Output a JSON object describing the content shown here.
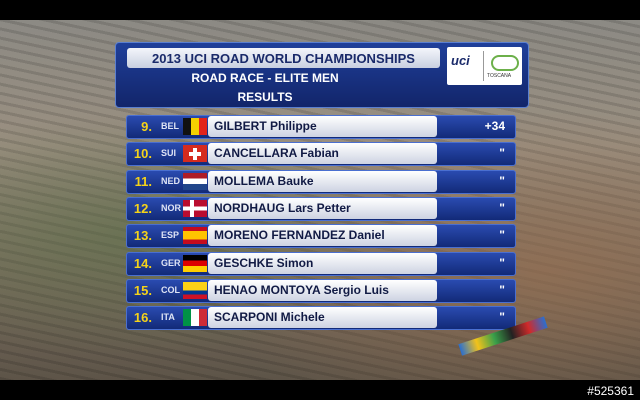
{
  "header": {
    "title": "2013 UCI ROAD WORLD CHAMPIONSHIPS",
    "race": "ROAD RACE - ELITE MEN",
    "section": "RESULTS",
    "logo": "uci",
    "logo_sub": "TOSCANA"
  },
  "results": [
    {
      "rank": "9.",
      "country": "BEL",
      "name": "GILBERT Philippe",
      "gap": "+34"
    },
    {
      "rank": "10.",
      "country": "SUI",
      "name": "CANCELLARA Fabian",
      "gap": "\""
    },
    {
      "rank": "11.",
      "country": "NED",
      "name": "MOLLEMA Bauke",
      "gap": "\""
    },
    {
      "rank": "12.",
      "country": "NOR",
      "name": "NORDHAUG Lars Petter",
      "gap": "\""
    },
    {
      "rank": "13.",
      "country": "ESP",
      "name": "MORENO FERNANDEZ Daniel",
      "gap": "\""
    },
    {
      "rank": "14.",
      "country": "GER",
      "name": "GESCHKE Simon",
      "gap": "\""
    },
    {
      "rank": "15.",
      "country": "COL",
      "name": "HENAO MONTOYA Sergio Luis",
      "gap": "\""
    },
    {
      "rank": "16.",
      "country": "ITA",
      "name": "SCARPONI Michele",
      "gap": "\""
    }
  ],
  "watermark": "#525361"
}
